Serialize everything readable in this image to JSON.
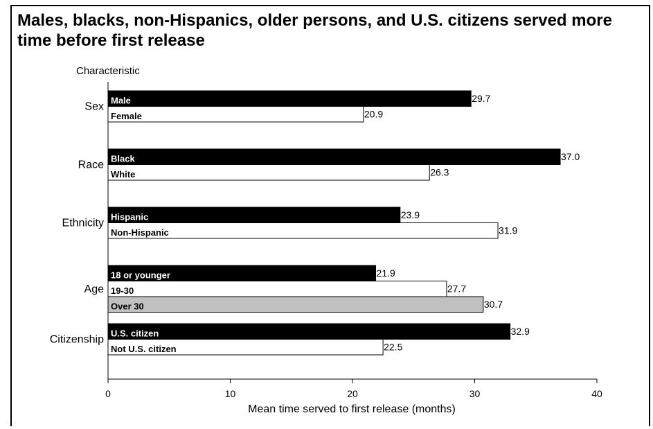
{
  "title": "Males, blacks, non-Hispanics, older persons, and U.S. citizens served more time before first release",
  "chart_data": {
    "type": "bar",
    "orientation": "horizontal",
    "title": "Males, blacks, non-Hispanics, older persons, and U.S. citizens served more time before first release",
    "xlabel": "Mean time served to first release (months)",
    "ylabel": "Characteristic",
    "xlim": [
      0,
      40
    ],
    "xticks": [
      0,
      10,
      20,
      30,
      40
    ],
    "grid": false,
    "colors": {
      "first": "#000000",
      "second": "#ffffff",
      "third": "#c0c0c0"
    },
    "groups": [
      {
        "name": "Sex",
        "bars": [
          {
            "label": "Male",
            "value": 29.7,
            "fill": "#000000"
          },
          {
            "label": "Female",
            "value": 20.9,
            "fill": "#ffffff"
          }
        ]
      },
      {
        "name": "Race",
        "bars": [
          {
            "label": "Black",
            "value": 37.0,
            "fill": "#000000"
          },
          {
            "label": "White",
            "value": 26.3,
            "fill": "#ffffff"
          }
        ]
      },
      {
        "name": "Ethnicity",
        "bars": [
          {
            "label": "Hispanic",
            "value": 23.9,
            "fill": "#000000"
          },
          {
            "label": "Non-Hispanic",
            "value": 31.9,
            "fill": "#ffffff"
          }
        ]
      },
      {
        "name": "Age",
        "bars": [
          {
            "label": "18 or younger",
            "value": 21.9,
            "fill": "#000000"
          },
          {
            "label": "19-30",
            "value": 27.7,
            "fill": "#ffffff"
          },
          {
            "label": "Over 30",
            "value": 30.7,
            "fill": "#c0c0c0"
          }
        ]
      },
      {
        "name": "Citizenship",
        "bars": [
          {
            "label": "U.S. citizen",
            "value": 32.9,
            "fill": "#000000"
          },
          {
            "label": "Not U.S. citizen",
            "value": 22.5,
            "fill": "#ffffff"
          }
        ]
      }
    ]
  }
}
